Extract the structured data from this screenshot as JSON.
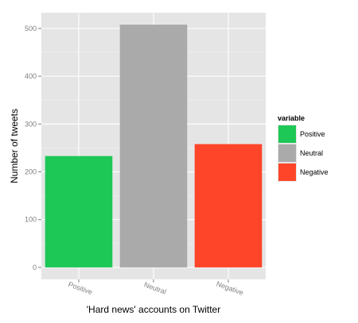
{
  "chart_data": {
    "type": "bar",
    "categories": [
      "Positive",
      "Neutral",
      "Negative"
    ],
    "values": [
      233,
      508,
      258
    ],
    "colors": [
      "#1dc856",
      "#aaaaaa",
      "#ff4529"
    ],
    "xlabel": "'Hard news' accounts on Twitter",
    "ylabel": "Number of tweets",
    "ylim": [
      -25,
      533
    ],
    "yticks": [
      0,
      100,
      200,
      300,
      400,
      500
    ],
    "grid": true,
    "legend": {
      "title": "variable",
      "position": "right",
      "entries": [
        "Positive",
        "Neutral",
        "Negative"
      ]
    }
  }
}
